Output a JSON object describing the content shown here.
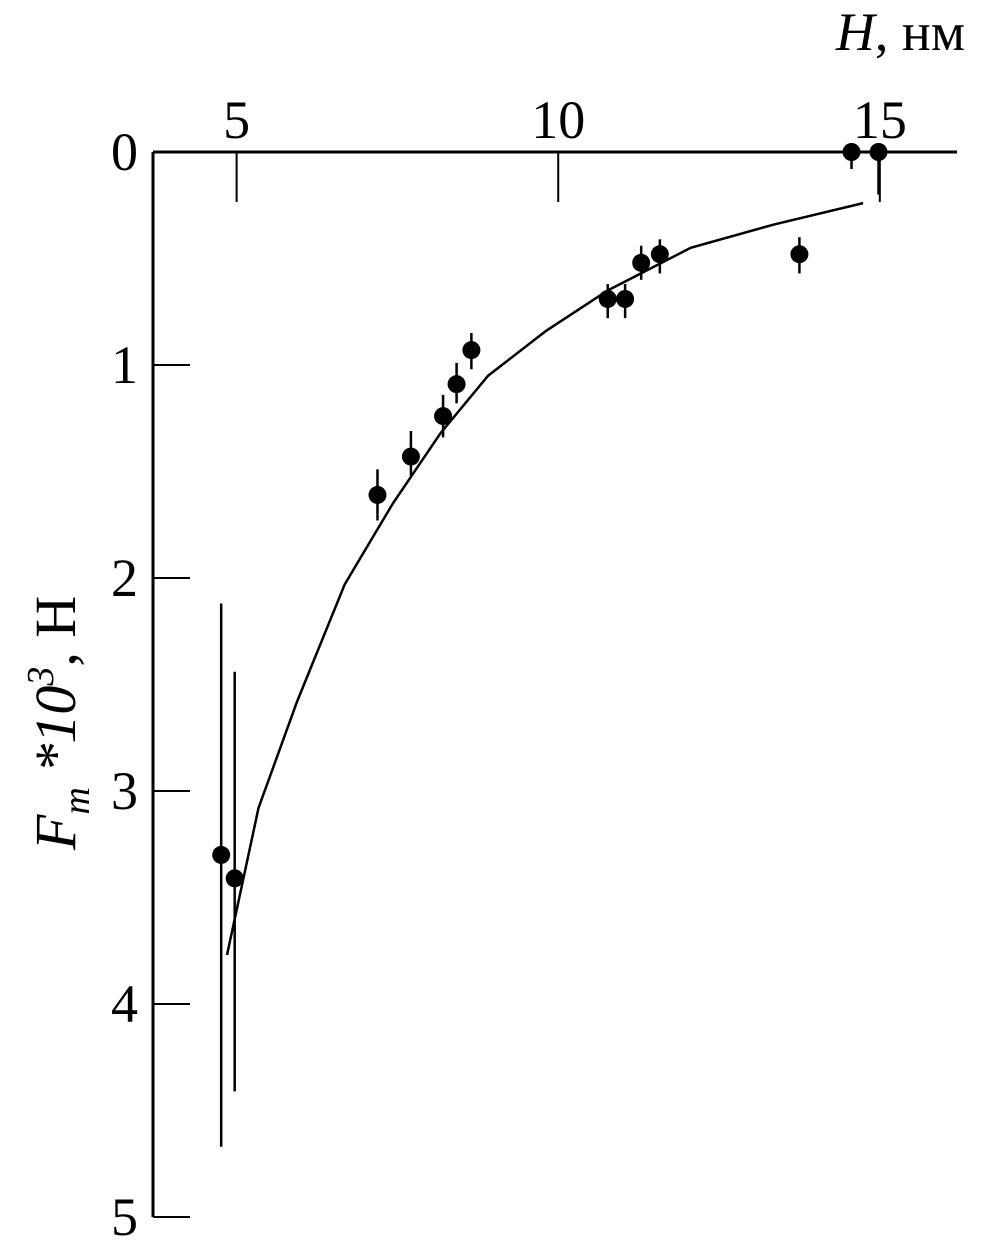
{
  "chart_data": {
    "type": "scatter",
    "x_label": {
      "var": "H",
      "unit": ", нм"
    },
    "y_label": {
      "var": "F",
      "sub": "m",
      "mid": " *10",
      "sup": "3",
      "unit": ", Н"
    },
    "xlim": [
      3.7,
      16.2
    ],
    "xticks": [
      5,
      10,
      15
    ],
    "ylim": [
      0,
      5
    ],
    "yticks": [
      0,
      1,
      2,
      3,
      4,
      5
    ],
    "y_inverted": true,
    "color": "#000000",
    "points": {
      "x": [
        4.76,
        4.97,
        7.19,
        7.71,
        8.21,
        8.42,
        8.65,
        10.77,
        11.04,
        11.29,
        11.58,
        13.75,
        14.56,
        14.98
      ],
      "y": [
        3.3,
        3.41,
        1.61,
        1.43,
        1.24,
        1.09,
        0.93,
        0.69,
        0.69,
        0.52,
        0.48,
        0.48,
        0,
        0
      ],
      "err_low": [
        2.12,
        2.44,
        1.49,
        1.31,
        1.14,
        0.99,
        0.85,
        0.62,
        0.62,
        0.44,
        0.41,
        0.4,
        0,
        0
      ],
      "err_high": [
        4.67,
        4.41,
        1.73,
        1.52,
        1.34,
        1.18,
        1.02,
        0.78,
        0.78,
        0.6,
        0.57,
        0.57,
        0.08,
        0.2
      ]
    },
    "fit": {
      "x": [
        4.85,
        5.34,
        5.94,
        6.68,
        7.43,
        8.17,
        8.91,
        9.81,
        10.77,
        12.06,
        13.36,
        14.74
      ],
      "y": [
        3.77,
        3.08,
        2.58,
        2.03,
        1.65,
        1.32,
        1.05,
        0.84,
        0.65,
        0.45,
        0.34,
        0.24
      ]
    }
  }
}
